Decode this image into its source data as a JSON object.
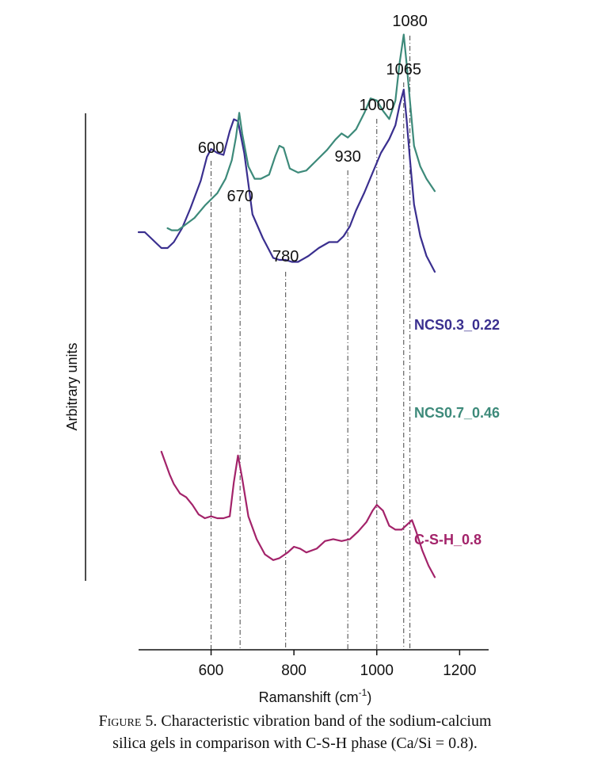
{
  "chart_data": {
    "type": "line",
    "xlabel": "Ramanshift (cm",
    "xlabel_sup": "-1",
    "xlabel_close": ")",
    "ylabel": "Arbitrary units",
    "xlim": [
      425,
      1270
    ],
    "xticks": [
      600,
      800,
      1000,
      1200
    ],
    "grid": false,
    "reference_lines": [
      {
        "x": 600,
        "label": "600"
      },
      {
        "x": 670,
        "label": "670"
      },
      {
        "x": 780,
        "label": "780"
      },
      {
        "x": 930,
        "label": "930"
      },
      {
        "x": 1000,
        "label": "1000"
      },
      {
        "x": 1065,
        "label": "1065"
      },
      {
        "x": 1080,
        "label": "1080"
      }
    ],
    "series": [
      {
        "name": "NCS0.3_0.22",
        "color": "#3a2f8f",
        "points": [
          [
            425,
            0.58
          ],
          [
            440,
            0.58
          ],
          [
            455,
            0.55
          ],
          [
            470,
            0.52
          ],
          [
            480,
            0.5
          ],
          [
            495,
            0.5
          ],
          [
            510,
            0.53
          ],
          [
            530,
            0.6
          ],
          [
            550,
            0.7
          ],
          [
            575,
            0.84
          ],
          [
            590,
            0.96
          ],
          [
            600,
            1.0
          ],
          [
            615,
            0.98
          ],
          [
            630,
            0.97
          ],
          [
            645,
            1.09
          ],
          [
            655,
            1.15
          ],
          [
            665,
            1.14
          ],
          [
            680,
            0.98
          ],
          [
            700,
            0.67
          ],
          [
            725,
            0.55
          ],
          [
            750,
            0.45
          ],
          [
            765,
            0.44
          ],
          [
            780,
            0.44
          ],
          [
            795,
            0.43
          ],
          [
            810,
            0.43
          ],
          [
            835,
            0.46
          ],
          [
            860,
            0.5
          ],
          [
            885,
            0.53
          ],
          [
            905,
            0.53
          ],
          [
            920,
            0.56
          ],
          [
            935,
            0.61
          ],
          [
            950,
            0.69
          ],
          [
            970,
            0.78
          ],
          [
            990,
            0.88
          ],
          [
            1010,
            0.98
          ],
          [
            1030,
            1.05
          ],
          [
            1045,
            1.12
          ],
          [
            1055,
            1.22
          ],
          [
            1065,
            1.3
          ],
          [
            1072,
            1.15
          ],
          [
            1080,
            0.95
          ],
          [
            1090,
            0.72
          ],
          [
            1105,
            0.56
          ],
          [
            1120,
            0.46
          ],
          [
            1140,
            0.38
          ]
        ]
      },
      {
        "name": "NCS0.7_0.46",
        "color": "#3d8a7a",
        "points": [
          [
            495,
            0.2
          ],
          [
            505,
            0.19
          ],
          [
            520,
            0.19
          ],
          [
            540,
            0.22
          ],
          [
            560,
            0.25
          ],
          [
            585,
            0.31
          ],
          [
            600,
            0.34
          ],
          [
            615,
            0.37
          ],
          [
            635,
            0.44
          ],
          [
            650,
            0.53
          ],
          [
            660,
            0.64
          ],
          [
            668,
            0.76
          ],
          [
            675,
            0.66
          ],
          [
            690,
            0.5
          ],
          [
            705,
            0.44
          ],
          [
            720,
            0.44
          ],
          [
            740,
            0.46
          ],
          [
            755,
            0.55
          ],
          [
            765,
            0.6
          ],
          [
            775,
            0.59
          ],
          [
            790,
            0.49
          ],
          [
            810,
            0.47
          ],
          [
            830,
            0.48
          ],
          [
            860,
            0.54
          ],
          [
            880,
            0.58
          ],
          [
            900,
            0.63
          ],
          [
            915,
            0.66
          ],
          [
            930,
            0.64
          ],
          [
            950,
            0.68
          ],
          [
            970,
            0.76
          ],
          [
            985,
            0.83
          ],
          [
            1000,
            0.82
          ],
          [
            1015,
            0.77
          ],
          [
            1030,
            0.73
          ],
          [
            1045,
            0.82
          ],
          [
            1055,
            1.0
          ],
          [
            1065,
            1.14
          ],
          [
            1072,
            1.0
          ],
          [
            1080,
            0.82
          ],
          [
            1090,
            0.6
          ],
          [
            1105,
            0.5
          ],
          [
            1120,
            0.44
          ],
          [
            1140,
            0.38
          ]
        ]
      },
      {
        "name": "C-S-H_0.8",
        "color": "#a3236a",
        "points": [
          [
            480,
            0.5
          ],
          [
            490,
            0.44
          ],
          [
            500,
            0.38
          ],
          [
            510,
            0.33
          ],
          [
            525,
            0.28
          ],
          [
            540,
            0.26
          ],
          [
            555,
            0.22
          ],
          [
            570,
            0.17
          ],
          [
            585,
            0.15
          ],
          [
            600,
            0.16
          ],
          [
            615,
            0.15
          ],
          [
            630,
            0.15
          ],
          [
            645,
            0.16
          ],
          [
            655,
            0.34
          ],
          [
            665,
            0.48
          ],
          [
            675,
            0.36
          ],
          [
            690,
            0.16
          ],
          [
            710,
            0.04
          ],
          [
            730,
            -0.04
          ],
          [
            750,
            -0.07
          ],
          [
            765,
            -0.06
          ],
          [
            785,
            -0.03
          ],
          [
            800,
            0.0
          ],
          [
            815,
            -0.01
          ],
          [
            830,
            -0.03
          ],
          [
            855,
            -0.01
          ],
          [
            875,
            0.03
          ],
          [
            895,
            0.04
          ],
          [
            915,
            0.03
          ],
          [
            935,
            0.04
          ],
          [
            955,
            0.08
          ],
          [
            975,
            0.13
          ],
          [
            990,
            0.19
          ],
          [
            1000,
            0.22
          ],
          [
            1015,
            0.19
          ],
          [
            1030,
            0.11
          ],
          [
            1045,
            0.09
          ],
          [
            1060,
            0.09
          ],
          [
            1075,
            0.12
          ],
          [
            1085,
            0.14
          ],
          [
            1095,
            0.08
          ],
          [
            1110,
            -0.02
          ],
          [
            1125,
            -0.1
          ],
          [
            1140,
            -0.16
          ]
        ]
      }
    ]
  },
  "caption": {
    "figure_label": "Figure 5.",
    "text": "Characteristic vibration band of the sodium-calcium",
    "text_line2": "silica gels in comparison with C-S-H phase (Ca/Si = 0.8)."
  }
}
